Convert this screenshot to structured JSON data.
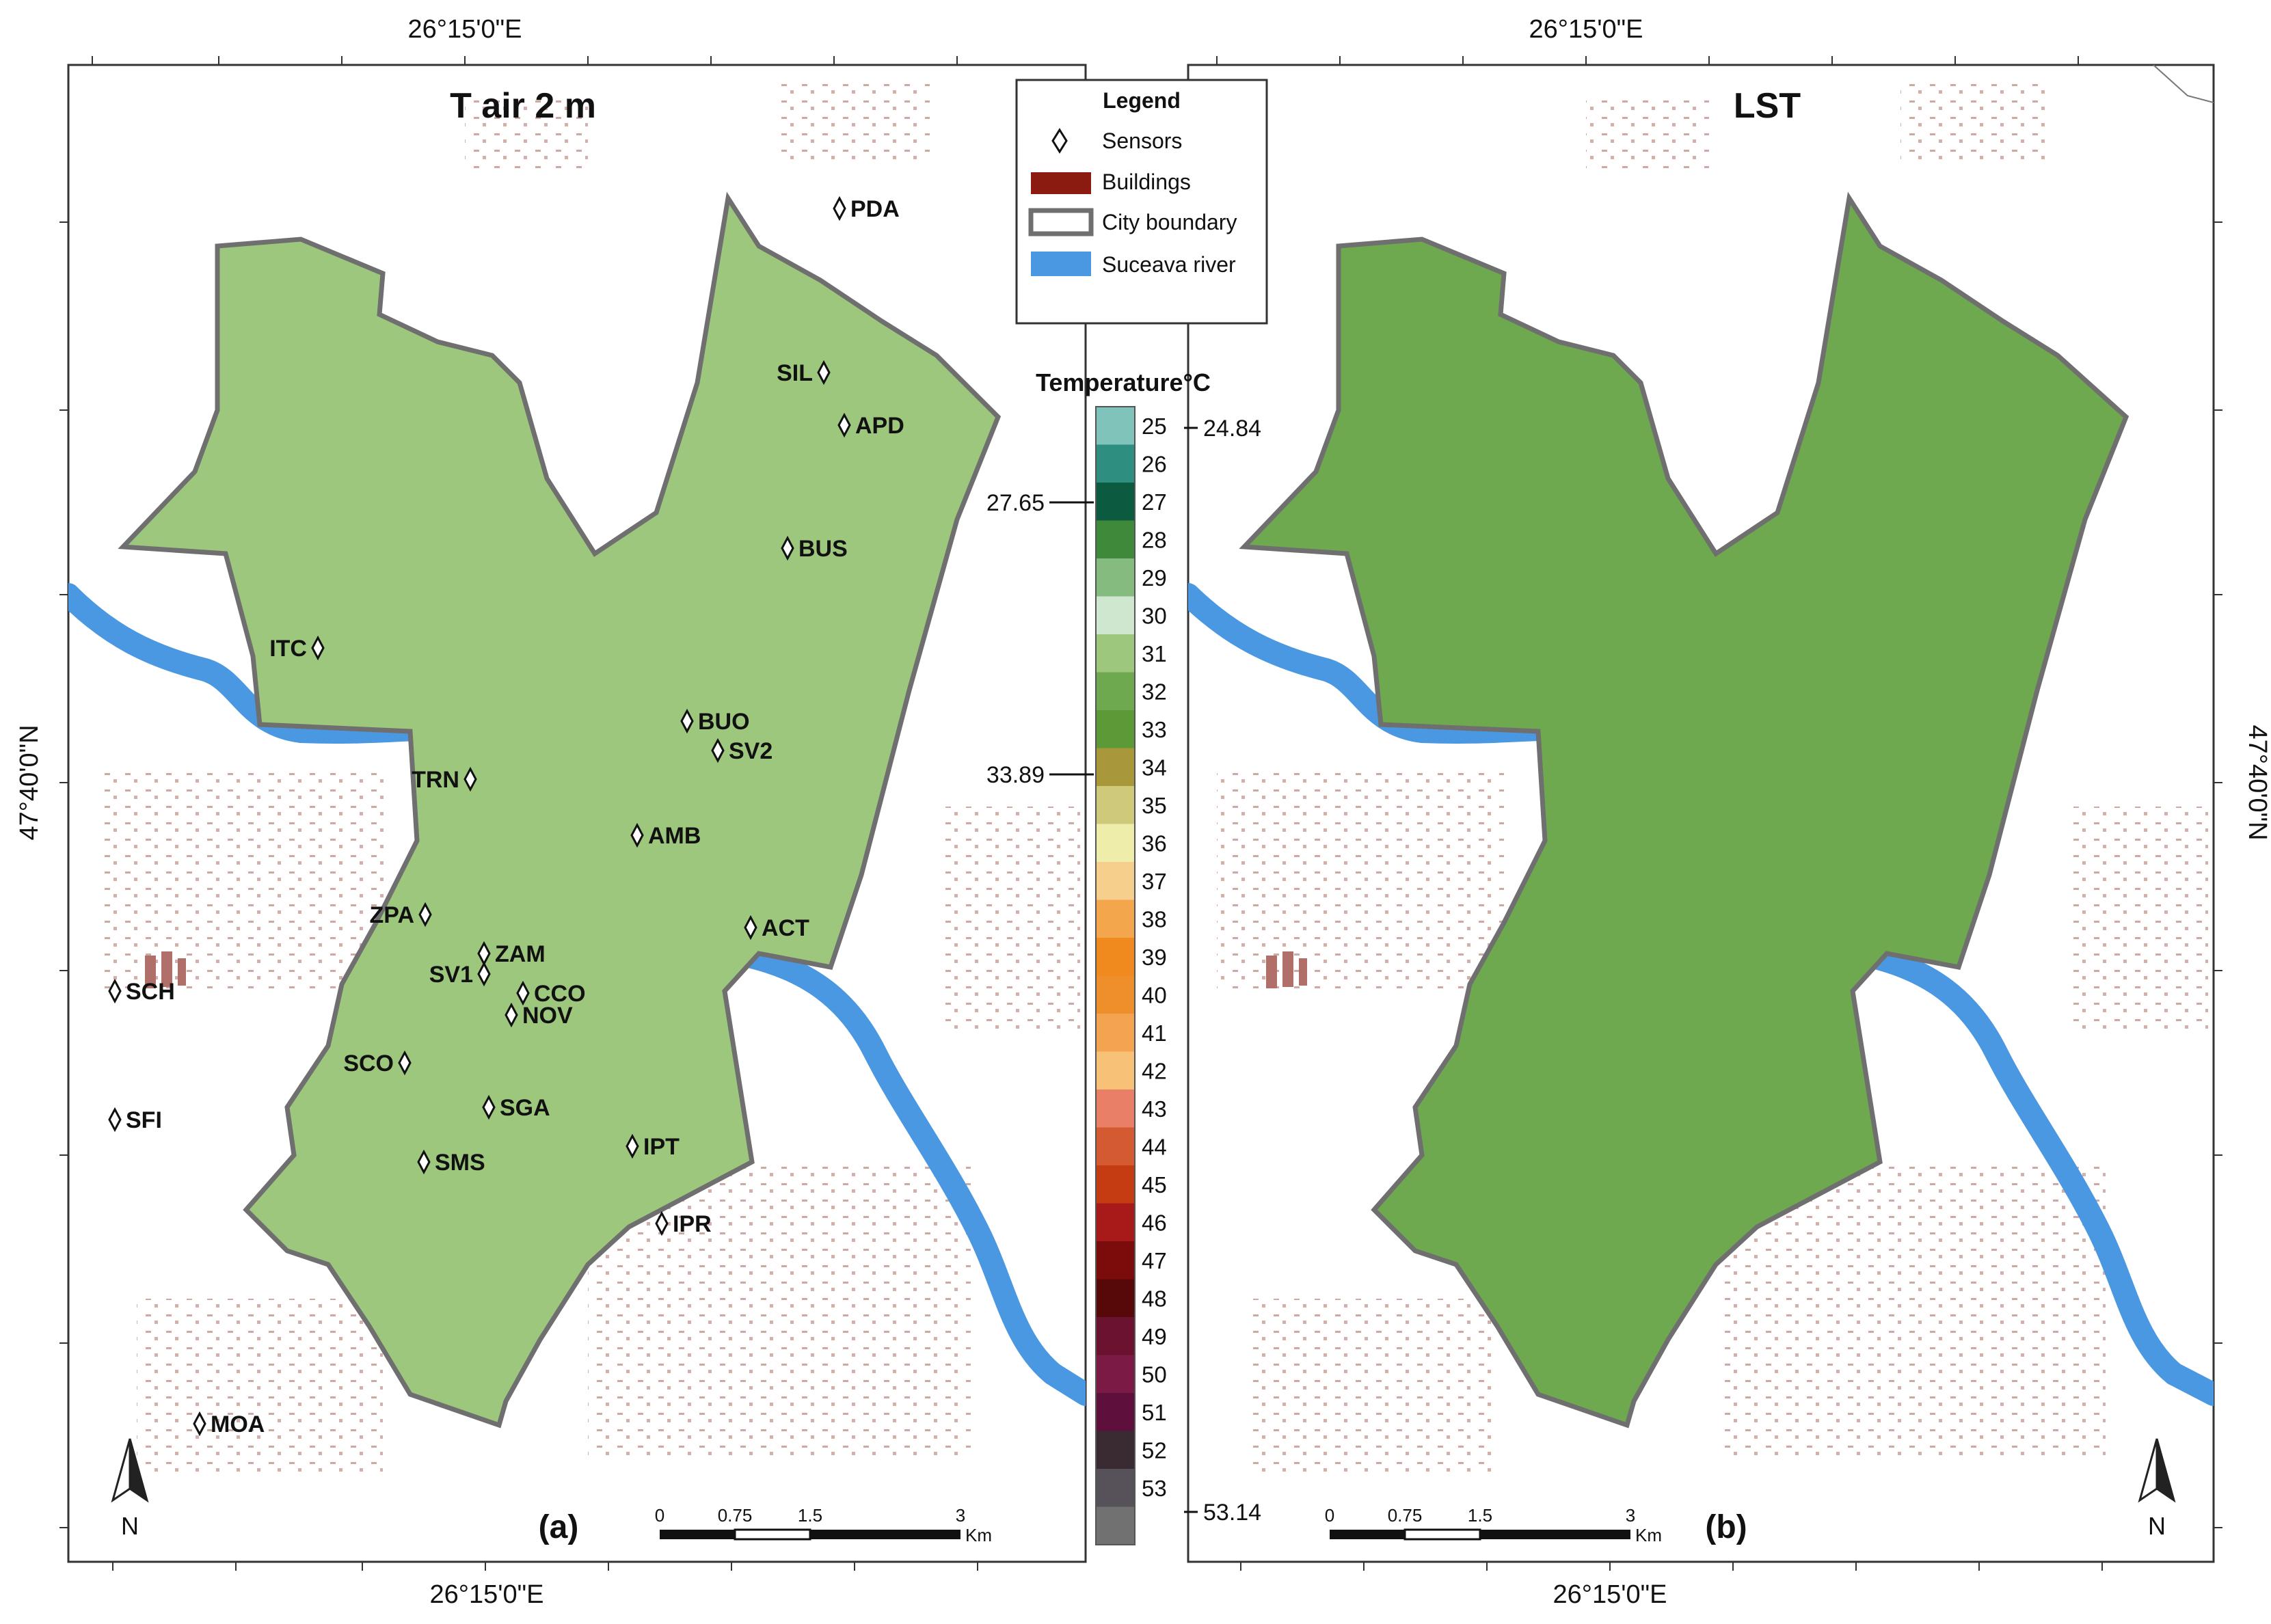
{
  "panels": [
    {
      "id": "a",
      "title": "T air 2 m",
      "letter": "(a)",
      "top_coord": "26°15'0\"E",
      "bottom_coord": "26°15'0\"E",
      "left_coord": "47°40'0\"N",
      "north_label": "N",
      "scale": {
        "ticks": [
          "0",
          "0.75",
          "1.5",
          "3"
        ],
        "unit": "Km"
      },
      "sensors": [
        "PDA",
        "SIL",
        "APD",
        "BUS",
        "ITC",
        "BUO",
        "SV2",
        "TRN",
        "AMB",
        "ZPA",
        "ACT",
        "ZAM",
        "SV1",
        "CCO",
        "SCH",
        "NOV",
        "SCO",
        "SGA",
        "SFI",
        "IPT",
        "SMS",
        "IPR",
        "MOA"
      ]
    },
    {
      "id": "b",
      "title": "LST",
      "letter": "(b)",
      "top_coord": "26°15'0\"E",
      "bottom_coord": "26°15'0\"E",
      "right_coord": "47°40'0\"N",
      "north_label": "N",
      "scale": {
        "ticks": [
          "0",
          "0.75",
          "1.5",
          "3"
        ],
        "unit": "Km"
      }
    }
  ],
  "legend": {
    "heading": "Legend",
    "items": [
      {
        "label": "Sensors",
        "symbol": "diamond-icon"
      },
      {
        "label": "Buildings",
        "color": "#8b1a10"
      },
      {
        "label": "City boundary",
        "color": "#6f6f6f"
      },
      {
        "label": "Suceava river",
        "color": "#4a97e2"
      }
    ]
  },
  "color_ramp": {
    "title": "Temperature°C",
    "classes": [
      {
        "label": "25",
        "color": "#7fc3bb"
      },
      {
        "label": "26",
        "color": "#2e8f80"
      },
      {
        "label": "27",
        "color": "#0c5a40"
      },
      {
        "label": "28",
        "color": "#3f8a3a"
      },
      {
        "label": "29",
        "color": "#86bb7f"
      },
      {
        "label": "30",
        "color": "#cfe6cf"
      },
      {
        "label": "31",
        "color": "#9dc77d"
      },
      {
        "label": "32",
        "color": "#6ea84f"
      },
      {
        "label": "33",
        "color": "#5c9a38"
      },
      {
        "label": "34",
        "color": "#a8983a"
      },
      {
        "label": "35",
        "color": "#cfc97a"
      },
      {
        "label": "36",
        "color": "#eeeeaa"
      },
      {
        "label": "37",
        "color": "#f7cf8c"
      },
      {
        "label": "38",
        "color": "#f3a64b"
      },
      {
        "label": "39",
        "color": "#f08a1e"
      },
      {
        "label": "40",
        "color": "#ef8f2c"
      },
      {
        "label": "41",
        "color": "#f4a351"
      },
      {
        "label": "42",
        "color": "#f7c277"
      },
      {
        "label": "43",
        "color": "#ea7f67"
      },
      {
        "label": "44",
        "color": "#d45a31"
      },
      {
        "label": "45",
        "color": "#c53c12"
      },
      {
        "label": "46",
        "color": "#a81a1a"
      },
      {
        "label": "47",
        "color": "#7c0c0c"
      },
      {
        "label": "48",
        "color": "#570808"
      },
      {
        "label": "49",
        "color": "#6a1230"
      },
      {
        "label": "50",
        "color": "#7a1a45"
      },
      {
        "label": "51",
        "color": "#5e0f3c"
      },
      {
        "label": "52",
        "color": "#3a2b33"
      },
      {
        "label": "53",
        "color": "#575159"
      },
      {
        "label": "",
        "color": "#717171"
      }
    ],
    "marks": [
      {
        "label": "24.84",
        "side": "right"
      },
      {
        "label": "27.65",
        "side": "left"
      },
      {
        "label": "33.89",
        "side": "left"
      },
      {
        "label": "53.14",
        "side": "right"
      }
    ]
  }
}
